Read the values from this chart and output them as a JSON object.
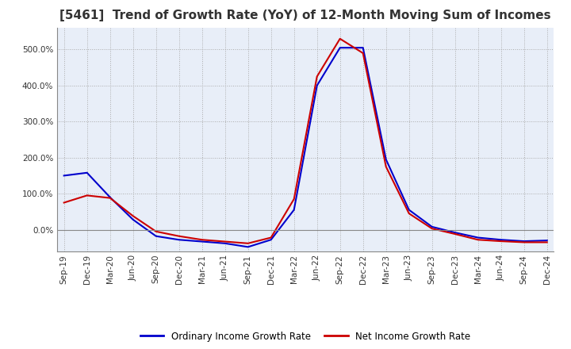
{
  "title": "[5461]  Trend of Growth Rate (YoY) of 12-Month Moving Sum of Incomes",
  "title_fontsize": 11,
  "legend_labels": [
    "Ordinary Income Growth Rate",
    "Net Income Growth Rate"
  ],
  "legend_colors": [
    "#0000cc",
    "#cc0000"
  ],
  "ylim": [
    -60,
    560
  ],
  "yticks": [
    0,
    100,
    200,
    300,
    400,
    500
  ],
  "background_color": "#ffffff",
  "plot_bg_color": "#e8eef8",
  "grid_color": "#aaaaaa",
  "dates": [
    "Sep-19",
    "Dec-19",
    "Mar-20",
    "Jun-20",
    "Sep-20",
    "Dec-20",
    "Mar-21",
    "Jun-21",
    "Sep-21",
    "Dec-21",
    "Mar-22",
    "Jun-22",
    "Sep-22",
    "Dec-22",
    "Mar-23",
    "Jun-23",
    "Sep-23",
    "Dec-23",
    "Mar-24",
    "Jun-24",
    "Sep-24",
    "Dec-24"
  ],
  "ordinary_income": [
    150,
    158,
    90,
    28,
    -18,
    -28,
    -33,
    -38,
    -48,
    -28,
    55,
    400,
    505,
    505,
    195,
    55,
    8,
    -8,
    -22,
    -28,
    -32,
    -30
  ],
  "net_income": [
    75,
    95,
    88,
    38,
    -5,
    -18,
    -28,
    -33,
    -38,
    -22,
    85,
    425,
    530,
    490,
    175,
    45,
    3,
    -12,
    -28,
    -32,
    -35,
    -35
  ]
}
